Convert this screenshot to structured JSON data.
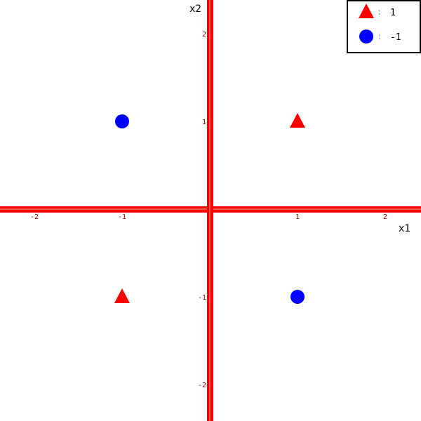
{
  "chart_data": {
    "type": "scatter",
    "title": "",
    "xlabel": "x1",
    "ylabel": "x2",
    "xlim": [
      -2.4,
      2.4
    ],
    "ylim": [
      -2.4,
      2.4
    ],
    "x_ticks": [
      -2,
      -1,
      1,
      2
    ],
    "y_ticks": [
      -2,
      -1,
      1,
      2
    ],
    "grid": false,
    "legend_placement": "top-right",
    "axis_color": "#ff0000",
    "series": [
      {
        "name": "1",
        "marker": "triangle",
        "color": "#ff0000",
        "points": [
          {
            "x": 1,
            "y": 1
          },
          {
            "x": -1,
            "y": -1
          }
        ]
      },
      {
        "name": "-1",
        "marker": "circle",
        "color": "#0000ff",
        "points": [
          {
            "x": -1,
            "y": 1
          },
          {
            "x": 1,
            "y": -1
          }
        ]
      }
    ],
    "legend_separator": ":"
  }
}
